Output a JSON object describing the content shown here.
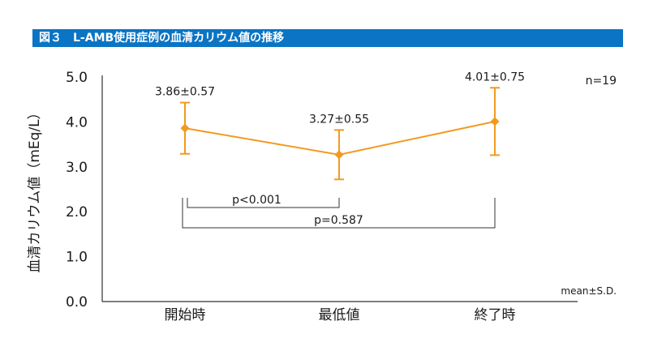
{
  "header": {
    "figure_no": "図３",
    "title": "L-AMB使用症例の血清カリウム値の推移"
  },
  "chart_data": {
    "type": "line",
    "categories": [
      "開始時",
      "最低値",
      "終了時"
    ],
    "series": [
      {
        "values": [
          3.86,
          3.27,
          4.01
        ],
        "sd": [
          0.57,
          0.55,
          0.75
        ]
      }
    ],
    "data_labels": [
      "3.86±0.57",
      "3.27±0.55",
      "4.01±0.75"
    ],
    "ylabel": "血清カリウム値（mEq/L）",
    "xlabel": "",
    "ylim": [
      0,
      5
    ],
    "yticks": [
      "0.0",
      "1.0",
      "2.0",
      "3.0",
      "4.0",
      "5.0"
    ],
    "annotations": {
      "n": "n=19",
      "stat_note": "mean±S.D.",
      "comparisons": [
        {
          "from": 0,
          "to": 1,
          "label": "p<0.001"
        },
        {
          "from": 0,
          "to": 2,
          "label": "p=0.587"
        }
      ]
    },
    "grid": false,
    "colors": {
      "series": "#f29a1e",
      "title_bg": "#0b74c4"
    }
  }
}
